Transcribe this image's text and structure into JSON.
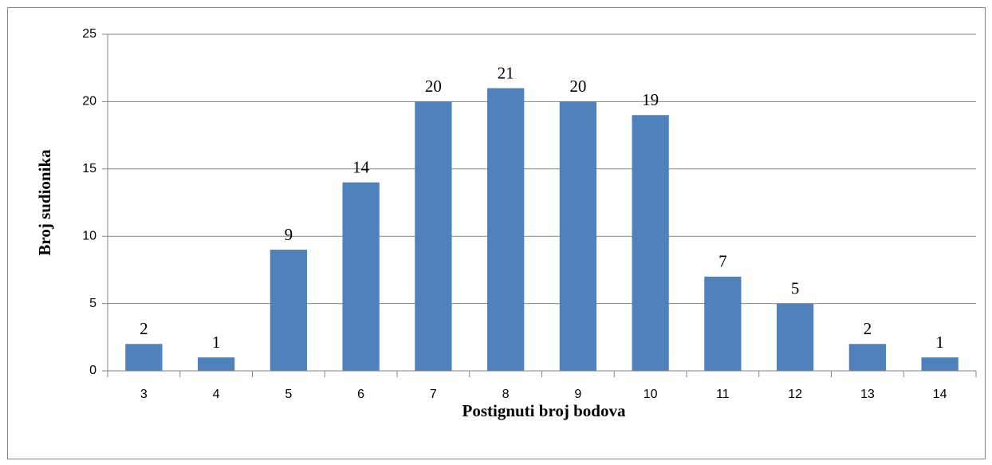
{
  "chart_data": {
    "type": "bar",
    "xlabel": "Postignuti broj bodova",
    "ylabel": "Broj sudionika",
    "categories": [
      "3",
      "4",
      "5",
      "6",
      "7",
      "8",
      "9",
      "10",
      "11",
      "12",
      "13",
      "14"
    ],
    "values": [
      2,
      1,
      9,
      14,
      20,
      21,
      20,
      19,
      7,
      5,
      2,
      1
    ],
    "color": "#4f81bd",
    "ylim": [
      0,
      25
    ],
    "yticks": [
      0,
      5,
      10,
      15,
      20,
      25
    ],
    "grid": true
  }
}
